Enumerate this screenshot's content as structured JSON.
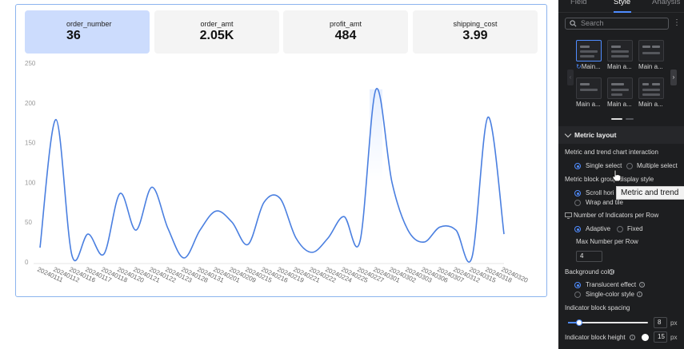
{
  "metrics": [
    {
      "label": "order_number",
      "value": "36"
    },
    {
      "label": "order_amt",
      "value": "2.05K"
    },
    {
      "label": "profit_amt",
      "value": "484"
    },
    {
      "label": "shipping_cost",
      "value": "3.99"
    }
  ],
  "chart_data": {
    "type": "line",
    "x": [
      "20240111",
      "20240112",
      "20240116",
      "20240117",
      "20240118",
      "20240120",
      "20240121",
      "20240122",
      "20240123",
      "20240128",
      "20240131",
      "20240201",
      "20240209",
      "20240215",
      "20240216",
      "20240219",
      "20240221",
      "20240222",
      "20240224",
      "20240225",
      "20240227",
      "20240301",
      "20240302",
      "20240303",
      "20240306",
      "20240307",
      "20240312",
      "20240315",
      "20240318",
      "20240320"
    ],
    "values": [
      18,
      179,
      8,
      35,
      10,
      86,
      40,
      94,
      42,
      5,
      40,
      64,
      50,
      22,
      75,
      80,
      30,
      12,
      30,
      57,
      26,
      217,
      100,
      40,
      25,
      44,
      40,
      6,
      182,
      35
    ],
    "ylim": [
      0,
      250
    ],
    "yticks": [
      0,
      50,
      100,
      150,
      200,
      250
    ],
    "line_color": "#4a7fe0",
    "grid": false,
    "area_highlight_color": "#e6efff"
  },
  "panel": {
    "tabs": [
      {
        "label": "Field",
        "active": false
      },
      {
        "label": "Style",
        "active": true
      },
      {
        "label": "Analysis",
        "active": false
      }
    ],
    "search_placeholder": "Search",
    "kebab": "⋮",
    "thumbnails": [
      {
        "label": "Main...",
        "selected": true
      },
      {
        "label": "Main a...",
        "selected": false
      },
      {
        "label": "Main a...",
        "selected": false
      },
      {
        "label": "Main a...",
        "selected": false
      },
      {
        "label": "Main a...",
        "selected": false
      },
      {
        "label": "Main a...",
        "selected": false
      }
    ],
    "section_title": "Metric layout",
    "interaction_label": "Metric and trend chart interaction",
    "single_select": "Single select",
    "multiple_select": "Multiple select",
    "display_style_label_a": "Metric block gro",
    "display_style_label_b": "display style",
    "scroll_horizontal": "Scroll hori",
    "wrap_and_tile": "Wrap and tile",
    "indicators_per_row": "Number of Indicators per Row",
    "adaptive": "Adaptive",
    "fixed": "Fixed",
    "max_per_row_label": "Max Number per Row",
    "max_per_row_value": "4",
    "background_color_label": "Background color",
    "translucent": "Translucent effect",
    "single_color": "Single-color style",
    "spacing_label": "Indicator block spacing",
    "spacing_value": "8",
    "spacing_unit": "px",
    "spacing_slider_fraction": 0.14,
    "height_label": "Indicator block height",
    "height_value": "15",
    "height_unit": "px",
    "tooltip": "Metric and trend"
  }
}
